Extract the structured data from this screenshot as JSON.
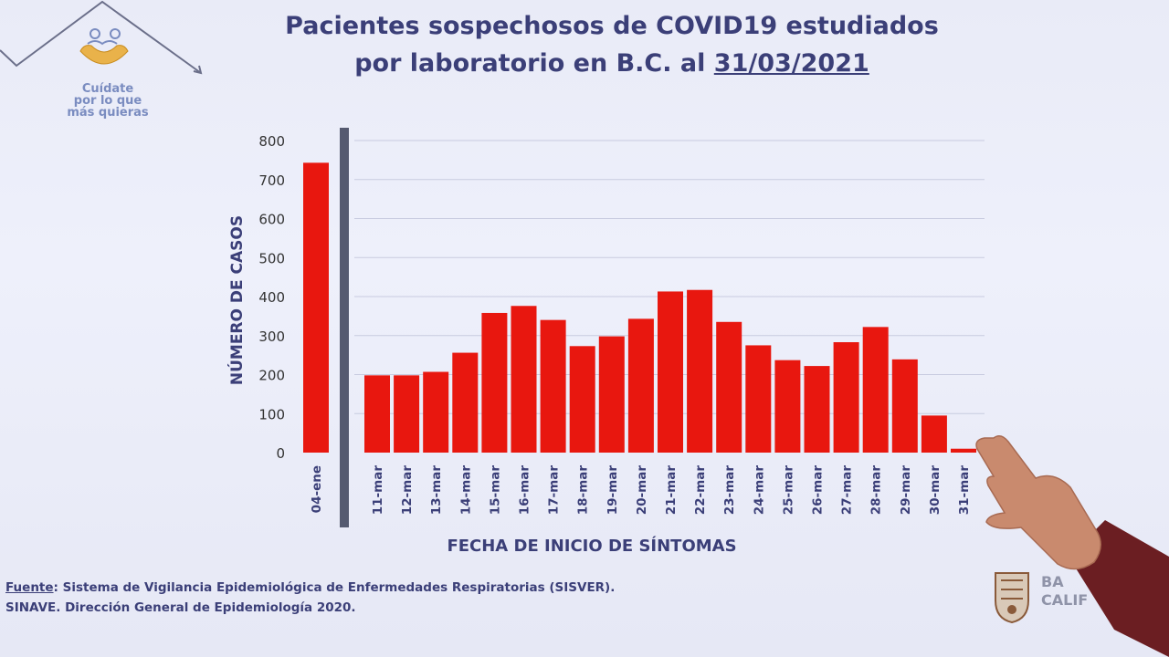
{
  "header": {
    "tagline": [
      "Cuídate",
      "por lo que",
      "más quieras"
    ],
    "title_line1": "Pacientes sospechosos de COVID19 estudiados",
    "title_line2_prefix": "por laboratorio en B.C. al ",
    "title_date": "31/03/2021"
  },
  "chart_data": {
    "type": "bar",
    "title": "Pacientes sospechosos de COVID19 estudiados por laboratorio en B.C. al 31/03/2021",
    "xlabel": "FECHA DE INICIO DE SÍNTOMAS",
    "ylabel": "NÚMERO DE CASOS",
    "ylim": [
      0,
      800
    ],
    "yticks": [
      0,
      100,
      200,
      300,
      400,
      500,
      600,
      700,
      800
    ],
    "categories": [
      "04-ene",
      "11-mar",
      "12-mar",
      "13-mar",
      "14-mar",
      "15-mar",
      "16-mar",
      "17-mar",
      "18-mar",
      "19-mar",
      "20-mar",
      "21-mar",
      "22-mar",
      "23-mar",
      "24-mar",
      "25-mar",
      "26-mar",
      "27-mar",
      "28-mar",
      "29-mar",
      "30-mar",
      "31-mar"
    ],
    "values": [
      743,
      198,
      198,
      207,
      256,
      358,
      376,
      340,
      273,
      298,
      343,
      413,
      417,
      335,
      275,
      237,
      222,
      283,
      322,
      239,
      95,
      10
    ],
    "grid": true,
    "bar_color": "#e8170f"
  },
  "footer": {
    "source_label": "Fuente",
    "source_line1": ": Sistema de Vigilancia Epidemiológica de Enfermedades Respiratorias (SISVER).",
    "source_line2": "SINAVE. Dirección General de Epidemiología 2020.",
    "brand_line1": "BA",
    "brand_line2": "CALIF"
  },
  "colors": {
    "title": "#3b3f78",
    "axis_text": "#333333",
    "bar": "#e8170f",
    "separator": "#555a70",
    "logo": "#7a8cc0"
  },
  "icons": {
    "logo": "heart-hands-logo-icon",
    "seal": "state-seal-icon"
  }
}
